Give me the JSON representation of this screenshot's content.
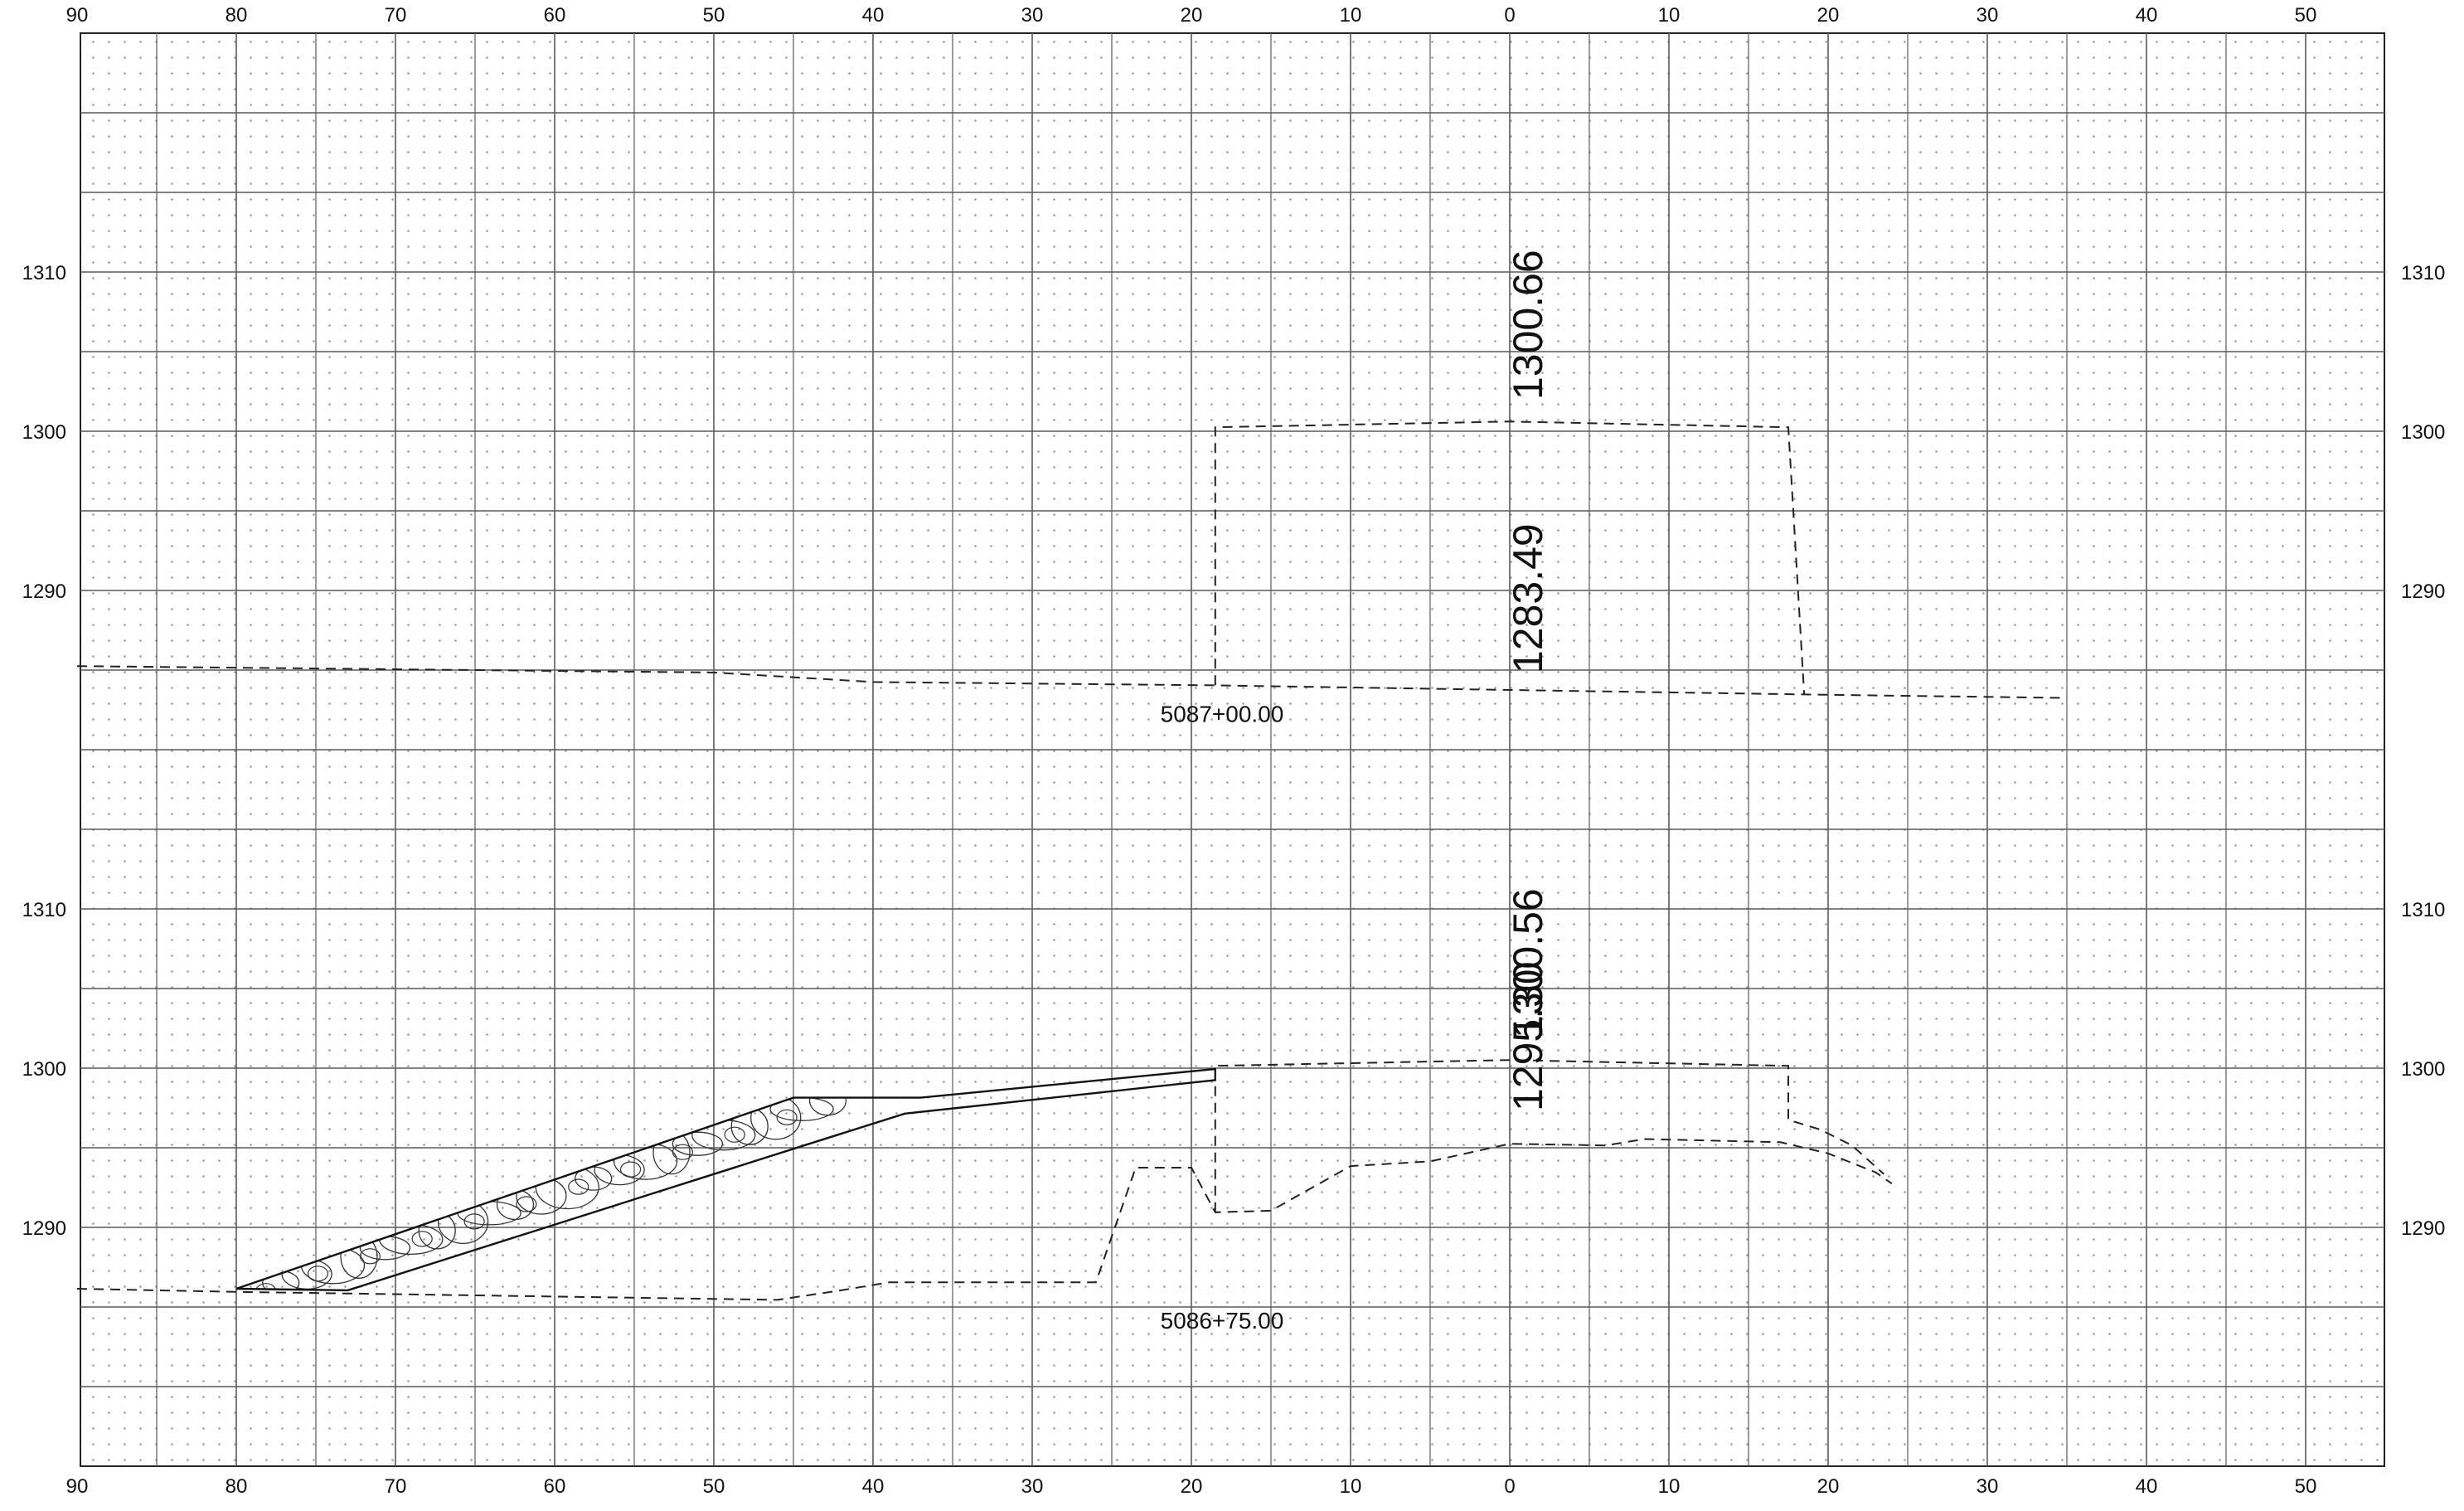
{
  "x_ticks": [
    "90",
    "80",
    "70",
    "60",
    "50",
    "40",
    "30",
    "20",
    "10",
    "0",
    "10",
    "20",
    "30",
    "40",
    "50"
  ],
  "sections": [
    {
      "station": "5087+00.00",
      "y_ticks": [
        "1310",
        "1300",
        "1290"
      ],
      "elevation_labels": [
        "1300.66",
        "1283.49"
      ],
      "existing_ground": [
        [
          -90,
          1285.3
        ],
        [
          -50,
          1284.9
        ],
        [
          -40,
          1284.3
        ],
        [
          -19,
          1284.1
        ],
        [
          0,
          1283.8
        ],
        [
          20,
          1283.5
        ],
        [
          35,
          1283.3
        ]
      ],
      "excavation_outline": [
        [
          -18.5,
          1284.1
        ],
        [
          -18.5,
          1300.3
        ],
        [
          0,
          1300.66
        ],
        [
          17.5,
          1300.3
        ],
        [
          18.5,
          1283.5
        ]
      ]
    },
    {
      "station": "5086+75.00",
      "y_ticks": [
        "1310",
        "1300",
        "1290"
      ],
      "elevation_labels": [
        "1300.56",
        "1295.30"
      ],
      "existing_ground": [
        [
          -90,
          1286.2
        ],
        [
          -80,
          1286
        ],
        [
          -73,
          1285.9
        ],
        [
          -46,
          1285.5
        ],
        [
          -42,
          1286.1
        ],
        [
          -39,
          1286.6
        ],
        [
          -26,
          1286.6
        ],
        [
          -23.5,
          1293.8
        ],
        [
          -20,
          1293.8
        ],
        [
          -18.5,
          1291
        ],
        [
          -15,
          1291.1
        ],
        [
          -10,
          1293.9
        ],
        [
          -5,
          1294.2
        ],
        [
          0,
          1295.3
        ],
        [
          6,
          1295.2
        ],
        [
          8.5,
          1295.6
        ],
        [
          17,
          1295.4
        ],
        [
          20,
          1294.7
        ],
        [
          23,
          1293.5
        ],
        [
          24,
          1292.8
        ]
      ],
      "excavation_outline": [
        [
          -18.5,
          1291
        ],
        [
          -18.5,
          1300.2
        ],
        [
          0,
          1300.56
        ],
        [
          17.5,
          1300.2
        ],
        [
          17.5,
          1296.8
        ],
        [
          19.5,
          1296.2
        ],
        [
          21.5,
          1295.2
        ],
        [
          23.5,
          1293.4
        ]
      ],
      "riprap_bottom": [
        [
          -80,
          1286.2
        ],
        [
          -73,
          1286.1
        ],
        [
          -44,
          1295.3
        ],
        [
          -38,
          1297.2
        ],
        [
          -18.5,
          1299.3
        ]
      ],
      "riprap_top": [
        [
          -80,
          1286.2
        ],
        [
          -45,
          1298.2
        ],
        [
          -37,
          1298.2
        ],
        [
          -18.5,
          1300
        ]
      ]
    }
  ]
}
